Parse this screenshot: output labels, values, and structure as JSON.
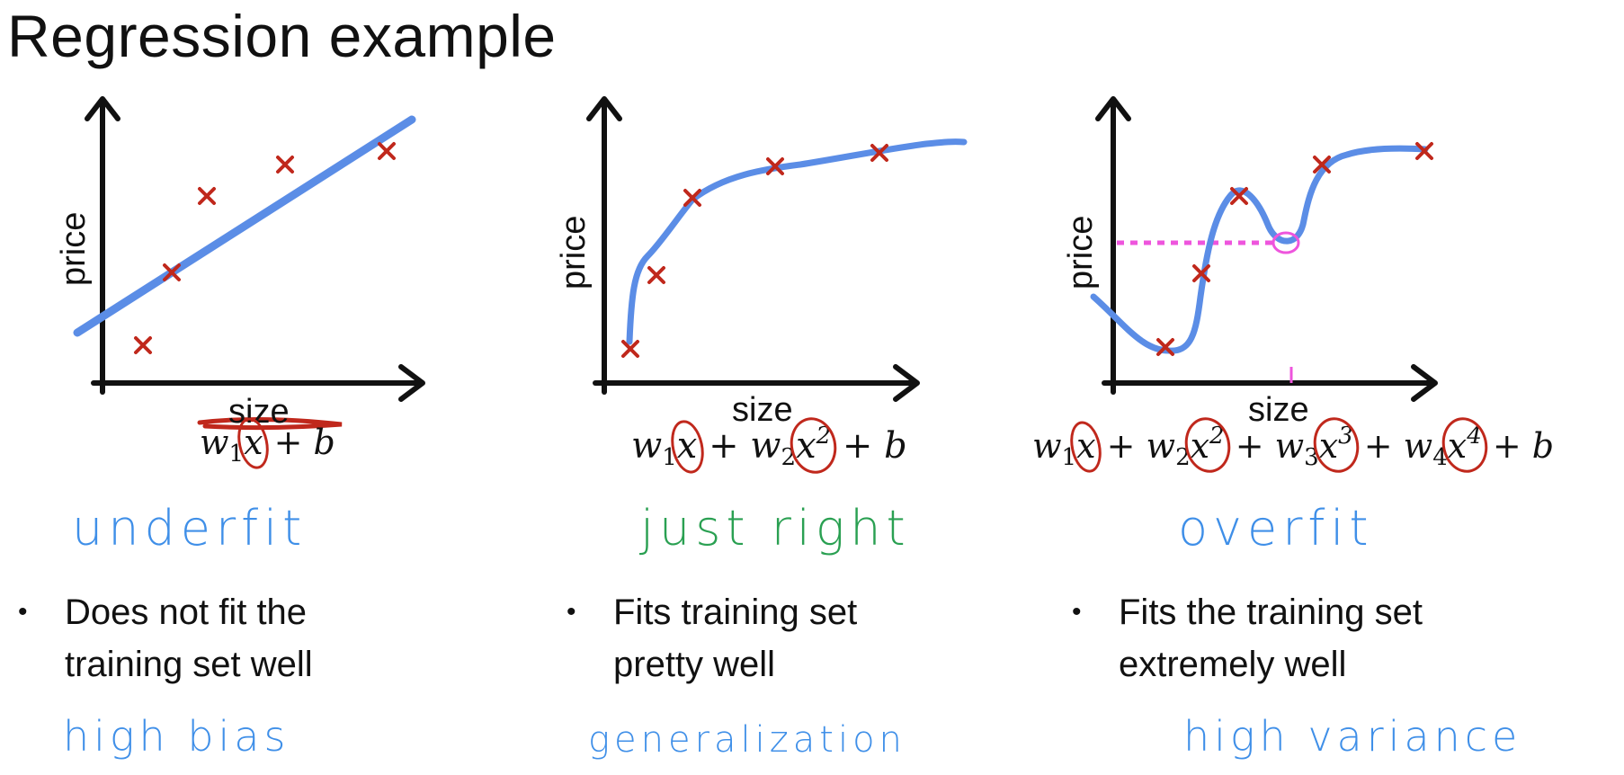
{
  "title": "Regression example",
  "colors": {
    "curve": "#5b8de6",
    "marker": "#c0281c",
    "highlight": "#ee55dd",
    "label_blue": "#3f8fe8",
    "label_green": "#2aa052",
    "text": "#111111"
  },
  "panels": [
    {
      "xlabel": "size",
      "ylabel": "price",
      "formula": {
        "w1": "w",
        "s1": "1",
        "x1": "x",
        "rest": "+ b"
      },
      "fit_label": "underfit",
      "bullet": "Does not fit the training set well",
      "bottom_label": "high bias"
    },
    {
      "xlabel": "size",
      "ylabel": "price",
      "formula": {
        "terms": [
          "w",
          "1",
          "x",
          "+ w",
          "2",
          "x",
          "2",
          "+ b"
        ]
      },
      "fit_label": "just right",
      "bullet": "Fits training set pretty well",
      "bottom_label": "generalization"
    },
    {
      "xlabel": "size",
      "ylabel": "price",
      "formula": {
        "terms": [
          "w",
          "1",
          "x",
          "+ w",
          "2",
          "x",
          "2",
          "+ w",
          "3",
          "x",
          "3",
          "+ w",
          "4",
          "x",
          "4",
          "+ b"
        ]
      },
      "fit_label": "overfit",
      "bullet": "Fits the training set extremely well",
      "bottom_label": "high variance"
    }
  ]
}
